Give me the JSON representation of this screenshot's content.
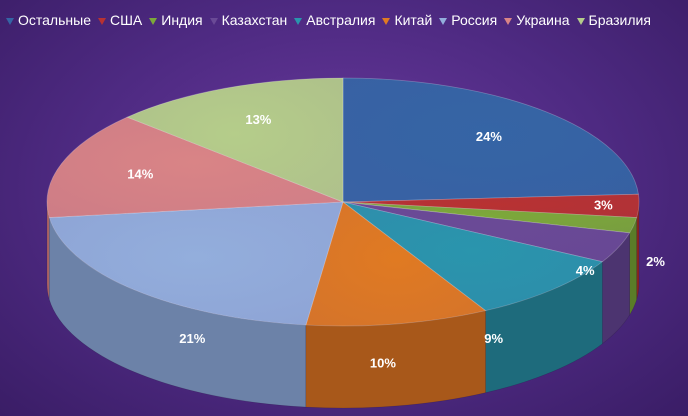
{
  "chart_data": {
    "type": "pie",
    "style": "3d",
    "legend_position": "top",
    "categories": [
      "Остальные",
      "США",
      "Индия",
      "Казахстан",
      "Австралия",
      "Китай",
      "Россия",
      "Украина",
      "Бразилия"
    ],
    "values": [
      24,
      3,
      2,
      4,
      9,
      10,
      21,
      14,
      13
    ],
    "labels": [
      "24%",
      "3%",
      "2%",
      "4%",
      "9%",
      "10%",
      "21%",
      "14%",
      "13%"
    ],
    "colors": [
      "#3565a5",
      "#b83232",
      "#7ca83a",
      "#6a4a96",
      "#2a95ad",
      "#e07a22",
      "#93aedc",
      "#d98486",
      "#b5cd8a"
    ],
    "side_colors": [
      "#25487a",
      "#862424",
      "#5a7c28",
      "#4c3470",
      "#1e6b7c",
      "#a8581a",
      "#6c82a8",
      "#a86264",
      "#879a66"
    ]
  }
}
